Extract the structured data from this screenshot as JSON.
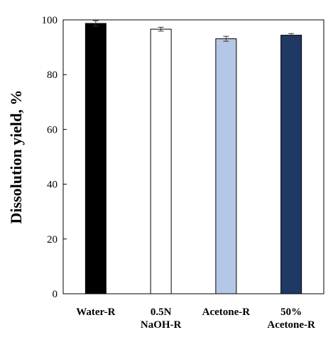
{
  "chart_data": {
    "type": "bar",
    "categories": [
      [
        "Water-R"
      ],
      [
        "0.5N",
        "NaOH-R"
      ],
      [
        "Acetone-R"
      ],
      [
        "50%",
        "Acetone-R"
      ]
    ],
    "values": [
      98.7,
      96.6,
      93.1,
      94.4
    ],
    "errors": [
      1.0,
      0.7,
      0.9,
      0.6
    ],
    "bar_colors": [
      "#000000",
      "#ffffff",
      "#b4c7e7",
      "#1f3864"
    ],
    "ylabel": "Dissolution yield, %",
    "ylim": [
      0,
      100
    ],
    "yticks": [
      0,
      20,
      40,
      60,
      80,
      100
    ],
    "grid": false,
    "legend": "none"
  }
}
